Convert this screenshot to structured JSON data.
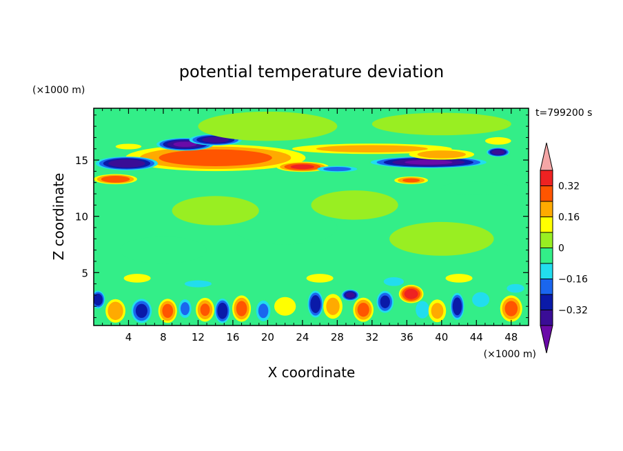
{
  "chart_data": {
    "type": "heatmap",
    "title": "potential temperature deviation",
    "xlabel": "X coordinate",
    "ylabel": "Z coordinate",
    "x_unit_label": "(×1000 m)",
    "y_unit_label": "(×1000 m)",
    "time_label": "t=799200 s",
    "xlim": [
      0,
      50
    ],
    "ylim": [
      0.3,
      19.6
    ],
    "x_ticks": [
      4,
      8,
      12,
      16,
      20,
      24,
      28,
      32,
      36,
      40,
      44,
      48
    ],
    "y_ticks": [
      5,
      10,
      15
    ],
    "grid": false,
    "background_level_color": "#33ee88",
    "colorbar": {
      "placement": "right",
      "levels": [
        -0.4,
        -0.32,
        -0.24,
        -0.16,
        -0.08,
        0,
        0.08,
        0.16,
        0.24,
        0.32,
        0.4
      ],
      "tick_labels": [
        "0.32",
        "0.16",
        "0",
        "−0.16",
        "−0.32"
      ],
      "tick_values": [
        0.32,
        0.16,
        0,
        -0.16,
        -0.32
      ],
      "colors": [
        "#6a0aa8",
        "#3a0d96",
        "#0a1aa8",
        "#1a66ee",
        "#22ddee",
        "#33ee88",
        "#99ee22",
        "#ffff00",
        "#ffaa00",
        "#ff5500",
        "#ee2222",
        "#f4a6a6"
      ]
    },
    "features": [
      {
        "name": "warm core upper",
        "x": 13.5,
        "z": 14.9,
        "rx": 6.2,
        "rz": 0.75,
        "value": 0.44
      },
      {
        "name": "warm band upper",
        "x": 14,
        "z": 15.2,
        "rx": 10.5,
        "rz": 1.2,
        "value": 0.28
      },
      {
        "name": "cold left",
        "x": 3.8,
        "z": 14.7,
        "rx": 3.5,
        "rz": 0.6,
        "value": -0.38
      },
      {
        "name": "cold upper left",
        "x": 10.5,
        "z": 16.4,
        "rx": 3.2,
        "rz": 0.55,
        "value": -0.4
      },
      {
        "name": "cold upper mid",
        "x": 14,
        "z": 16.8,
        "rx": 3,
        "rz": 0.5,
        "value": -0.34
      },
      {
        "name": "cold right",
        "x": 38.5,
        "z": 14.8,
        "rx": 6.5,
        "rz": 0.5,
        "value": -0.4
      },
      {
        "name": "cold far right",
        "x": 46.5,
        "z": 15.7,
        "rx": 1.3,
        "rz": 0.4,
        "value": -0.36
      },
      {
        "name": "warm low left",
        "x": 2.5,
        "z": 13.3,
        "rx": 2.5,
        "rz": 0.45,
        "value": 0.3
      },
      {
        "name": "warm low right",
        "x": 36.5,
        "z": 13.2,
        "rx": 2,
        "rz": 0.35,
        "value": 0.24
      },
      {
        "name": "warm mid",
        "x": 24,
        "z": 14.4,
        "rx": 3,
        "rz": 0.45,
        "value": 0.32
      },
      {
        "name": "warm band right",
        "x": 32,
        "z": 16,
        "rx": 10,
        "rz": 0.5,
        "value": 0.18
      },
      {
        "name": "warm upper right",
        "x": 40,
        "z": 15.5,
        "rx": 4,
        "rz": 0.5,
        "value": 0.2
      },
      {
        "name": "cool center",
        "x": 28,
        "z": 14.2,
        "rx": 2.5,
        "rz": 0.3,
        "value": -0.18
      },
      {
        "name": "warm top right",
        "x": 46.5,
        "z": 16.7,
        "rx": 1.8,
        "rz": 0.4,
        "value": 0.12
      },
      {
        "name": "warm top left",
        "x": 4,
        "z": 16.2,
        "rx": 1.8,
        "rz": 0.3,
        "value": 0.12
      },
      {
        "name": "light green patch top",
        "x": 20,
        "z": 18,
        "rx": 8,
        "rz": 1.3,
        "value": 0.06
      },
      {
        "name": "light green patch top right",
        "x": 40,
        "z": 18.2,
        "rx": 8,
        "rz": 1,
        "value": 0.06
      },
      {
        "name": "cool patch",
        "x": 44,
        "z": 12.5,
        "rx": 4,
        "rz": 0.6,
        "value": -0.05
      },
      {
        "name": "green mid band",
        "x": 22,
        "z": 9,
        "rx": 6,
        "rz": 1.5,
        "value": -0.04
      },
      {
        "name": "green mid band 2",
        "x": 8,
        "z": 7,
        "rx": 5,
        "rz": 1.2,
        "value": -0.04
      },
      {
        "name": "lime patch mid",
        "x": 30,
        "z": 11,
        "rx": 5,
        "rz": 1.3,
        "value": 0.05
      },
      {
        "name": "lime patch mid 2",
        "x": 14,
        "z": 10.5,
        "rx": 5,
        "rz": 1.3,
        "value": 0.05
      },
      {
        "name": "lime patch mid 3",
        "x": 40,
        "z": 8,
        "rx": 6,
        "rz": 1.5,
        "value": 0.05
      },
      {
        "name": "low warm 1",
        "x": 2.5,
        "z": 1.6,
        "rx": 1.2,
        "rz": 1.1,
        "value": 0.22
      },
      {
        "name": "low cold 1",
        "x": 5.5,
        "z": 1.6,
        "rx": 1.2,
        "rz": 1.1,
        "value": -0.26
      },
      {
        "name": "low warm 2",
        "x": 8.5,
        "z": 1.6,
        "rx": 1.1,
        "rz": 1.1,
        "value": 0.26
      },
      {
        "name": "low cold 2",
        "x": 10.5,
        "z": 1.8,
        "rx": 0.8,
        "rz": 0.9,
        "value": -0.18
      },
      {
        "name": "low warm 3",
        "x": 12.8,
        "z": 1.7,
        "rx": 1.1,
        "rz": 1.1,
        "value": 0.24
      },
      {
        "name": "low cold 3",
        "x": 14.8,
        "z": 1.6,
        "rx": 0.9,
        "rz": 1.1,
        "value": -0.3
      },
      {
        "name": "low warm 4",
        "x": 17,
        "z": 1.8,
        "rx": 1.1,
        "rz": 1.2,
        "value": 0.26
      },
      {
        "name": "low cold 4",
        "x": 19.5,
        "z": 1.6,
        "rx": 0.9,
        "rz": 1,
        "value": -0.18
      },
      {
        "name": "low warm 5",
        "x": 22,
        "z": 2,
        "rx": 1.5,
        "rz": 1,
        "value": 0.12
      },
      {
        "name": "low cold 5",
        "x": 25.5,
        "z": 2.2,
        "rx": 0.9,
        "rz": 1.2,
        "value": -0.3
      },
      {
        "name": "low warm 6",
        "x": 27.5,
        "z": 2,
        "rx": 1.2,
        "rz": 1.2,
        "value": 0.18
      },
      {
        "name": "low cold 6",
        "x": 29.5,
        "z": 3,
        "rx": 1,
        "rz": 0.5,
        "value": -0.34
      },
      {
        "name": "low warm 7",
        "x": 31,
        "z": 1.7,
        "rx": 1.2,
        "rz": 1.1,
        "value": 0.26
      },
      {
        "name": "low cold 7",
        "x": 33.5,
        "z": 2.4,
        "rx": 1,
        "rz": 1,
        "value": -0.26
      },
      {
        "name": "low warm 8",
        "x": 36.5,
        "z": 3.1,
        "rx": 1.4,
        "rz": 0.8,
        "value": 0.36
      },
      {
        "name": "low cold 8",
        "x": 37.8,
        "z": 1.7,
        "rx": 0.9,
        "rz": 0.9,
        "value": -0.14
      },
      {
        "name": "low warm 9",
        "x": 39.5,
        "z": 1.6,
        "rx": 1.1,
        "rz": 1.1,
        "value": 0.18
      },
      {
        "name": "low cold 9",
        "x": 41.8,
        "z": 2,
        "rx": 0.8,
        "rz": 1.2,
        "value": -0.3
      },
      {
        "name": "low cold 10",
        "x": 44.5,
        "z": 2.6,
        "rx": 1.2,
        "rz": 0.8,
        "value": -0.12
      },
      {
        "name": "low warm 10",
        "x": 48,
        "z": 1.8,
        "rx": 1.3,
        "rz": 1.2,
        "value": 0.26
      },
      {
        "name": "low cold 11",
        "x": 0.5,
        "z": 2.6,
        "rx": 0.8,
        "rz": 0.8,
        "value": -0.3
      },
      {
        "name": "low cyan right",
        "x": 48.5,
        "z": 3.6,
        "rx": 1.3,
        "rz": 0.5,
        "value": -0.1
      },
      {
        "name": "low cyan mid",
        "x": 34.5,
        "z": 4.2,
        "rx": 1.5,
        "rz": 0.5,
        "value": -0.1
      },
      {
        "name": "low cyan left",
        "x": 12,
        "z": 4,
        "rx": 2,
        "rz": 0.4,
        "value": -0.1
      },
      {
        "name": "low lime 1",
        "x": 5,
        "z": 4.5,
        "rx": 2,
        "rz": 0.5,
        "value": 0.1
      },
      {
        "name": "low lime 2",
        "x": 26,
        "z": 4.5,
        "rx": 2,
        "rz": 0.5,
        "value": 0.1
      },
      {
        "name": "low lime 3",
        "x": 42,
        "z": 4.5,
        "rx": 2,
        "rz": 0.5,
        "value": 0.1
      }
    ]
  }
}
